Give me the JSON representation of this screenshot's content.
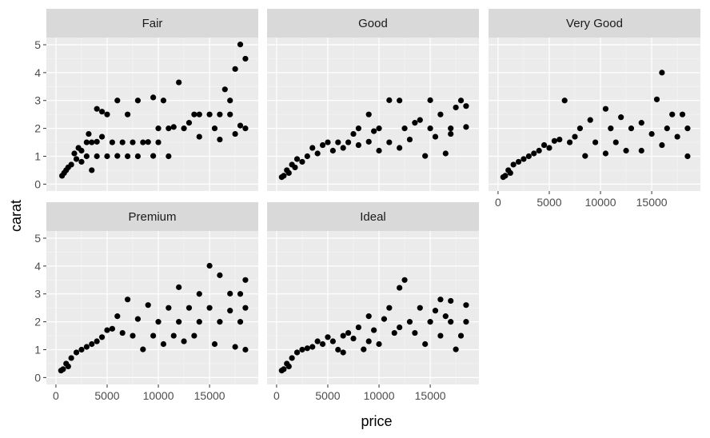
{
  "chart_data": {
    "type": "scatter",
    "xlabel": "price",
    "ylabel": "carat",
    "xlim": [
      0,
      18823
    ],
    "ylim": [
      0,
      5.01
    ],
    "x_ticks": [
      0,
      5000,
      10000,
      15000
    ],
    "y_ticks": [
      0,
      1,
      2,
      3,
      4,
      5
    ],
    "grid": true,
    "legend": "none",
    "colors": {
      "panel_bg": "#ebebeb",
      "strip_bg": "#d9d9d9",
      "grid_major": "#ffffff",
      "grid_minor": "#f5f5f5",
      "point": "#000000"
    },
    "facets": [
      {
        "label": "Fair",
        "points": [
          [
            18000,
            5.01
          ],
          [
            18500,
            4.5
          ],
          [
            17500,
            4.13
          ],
          [
            12000,
            3.65
          ],
          [
            16500,
            3.4
          ],
          [
            9500,
            3.11
          ],
          [
            10500,
            3.0
          ],
          [
            8000,
            3.0
          ],
          [
            17000,
            3.0
          ],
          [
            6000,
            3.0
          ],
          [
            4000,
            2.7
          ],
          [
            5000,
            2.5
          ],
          [
            4500,
            2.6
          ],
          [
            7000,
            2.5
          ],
          [
            14000,
            2.5
          ],
          [
            15000,
            2.5
          ],
          [
            16000,
            2.5
          ],
          [
            17000,
            2.5
          ],
          [
            13000,
            2.2
          ],
          [
            18000,
            2.1
          ],
          [
            10000,
            2.0
          ],
          [
            11000,
            2.0
          ],
          [
            12500,
            2.0
          ],
          [
            15500,
            2.0
          ],
          [
            18500,
            2.0
          ],
          [
            3000,
            1.5
          ],
          [
            3500,
            1.5
          ],
          [
            4000,
            1.52
          ],
          [
            5500,
            1.5
          ],
          [
            6500,
            1.5
          ],
          [
            7500,
            1.5
          ],
          [
            8500,
            1.5
          ],
          [
            9000,
            1.51
          ],
          [
            10000,
            1.5
          ],
          [
            2500,
            1.2
          ],
          [
            3000,
            1.0
          ],
          [
            4000,
            1.0
          ],
          [
            5000,
            1.0
          ],
          [
            6000,
            1.01
          ],
          [
            7000,
            1.0
          ],
          [
            8000,
            1.0
          ],
          [
            9500,
            1.01
          ],
          [
            11000,
            1.0
          ],
          [
            2000,
            0.9
          ],
          [
            2500,
            0.8
          ],
          [
            1500,
            0.7
          ],
          [
            3500,
            0.5
          ],
          [
            1000,
            0.5
          ],
          [
            800,
            0.4
          ],
          [
            600,
            0.3
          ],
          [
            1200,
            0.6
          ],
          [
            1800,
            1.1
          ],
          [
            2200,
            1.3
          ],
          [
            4500,
            1.7
          ],
          [
            3200,
            1.8
          ],
          [
            14000,
            1.7
          ],
          [
            16000,
            1.6
          ],
          [
            17500,
            1.8
          ],
          [
            13500,
            2.5
          ],
          [
            11500,
            2.05
          ]
        ]
      },
      {
        "label": "Good",
        "points": [
          [
            11000,
            3.01
          ],
          [
            12000,
            3.0
          ],
          [
            15000,
            3.01
          ],
          [
            18000,
            3.0
          ],
          [
            18500,
            2.8
          ],
          [
            17500,
            2.75
          ],
          [
            16000,
            2.5
          ],
          [
            14000,
            2.3
          ],
          [
            9000,
            2.5
          ],
          [
            8000,
            2.0
          ],
          [
            10000,
            2.0
          ],
          [
            12500,
            2.0
          ],
          [
            15000,
            2.0
          ],
          [
            17000,
            2.0
          ],
          [
            18500,
            2.05
          ],
          [
            6000,
            1.5
          ],
          [
            5000,
            1.5
          ],
          [
            7000,
            1.5
          ],
          [
            9000,
            1.52
          ],
          [
            11000,
            1.5
          ],
          [
            13000,
            1.6
          ],
          [
            15500,
            1.7
          ],
          [
            17000,
            1.8
          ],
          [
            3000,
            1.0
          ],
          [
            4000,
            1.1
          ],
          [
            5500,
            1.2
          ],
          [
            6500,
            1.3
          ],
          [
            8000,
            1.4
          ],
          [
            10000,
            1.2
          ],
          [
            12000,
            1.3
          ],
          [
            14500,
            1.01
          ],
          [
            16500,
            1.1
          ],
          [
            2000,
            0.9
          ],
          [
            2500,
            0.8
          ],
          [
            1500,
            0.7
          ],
          [
            1000,
            0.5
          ],
          [
            700,
            0.3
          ],
          [
            500,
            0.25
          ],
          [
            1200,
            0.4
          ],
          [
            1800,
            0.6
          ],
          [
            3500,
            1.3
          ],
          [
            4500,
            1.4
          ],
          [
            7500,
            1.8
          ],
          [
            9500,
            1.9
          ],
          [
            13500,
            2.2
          ]
        ]
      },
      {
        "label": "Very Good",
        "points": [
          [
            16000,
            4.0
          ],
          [
            15500,
            3.04
          ],
          [
            6500,
            3.0
          ],
          [
            10500,
            2.7
          ],
          [
            17000,
            2.5
          ],
          [
            18000,
            2.5
          ],
          [
            12000,
            2.4
          ],
          [
            9000,
            2.3
          ],
          [
            14000,
            2.2
          ],
          [
            16500,
            2.0
          ],
          [
            18500,
            2.0
          ],
          [
            8000,
            2.0
          ],
          [
            11000,
            2.0
          ],
          [
            13000,
            2.0
          ],
          [
            15000,
            1.8
          ],
          [
            17500,
            1.7
          ],
          [
            6000,
            1.6
          ],
          [
            7000,
            1.5
          ],
          [
            9500,
            1.5
          ],
          [
            11500,
            1.5
          ],
          [
            14000,
            1.2
          ],
          [
            16000,
            1.4
          ],
          [
            18500,
            1.0
          ],
          [
            5000,
            1.3
          ],
          [
            4000,
            1.2
          ],
          [
            3000,
            1.0
          ],
          [
            8500,
            1.01
          ],
          [
            10500,
            1.1
          ],
          [
            12500,
            1.2
          ],
          [
            2500,
            0.9
          ],
          [
            2000,
            0.8
          ],
          [
            1500,
            0.7
          ],
          [
            1000,
            0.5
          ],
          [
            700,
            0.3
          ],
          [
            500,
            0.25
          ],
          [
            1200,
            0.4
          ],
          [
            3500,
            1.1
          ],
          [
            4500,
            1.4
          ],
          [
            5500,
            1.55
          ],
          [
            7500,
            1.7
          ]
        ]
      },
      {
        "label": "Premium",
        "points": [
          [
            15000,
            4.01
          ],
          [
            16000,
            3.67
          ],
          [
            18500,
            3.5
          ],
          [
            12000,
            3.24
          ],
          [
            17000,
            3.01
          ],
          [
            14000,
            3.0
          ],
          [
            18000,
            3.0
          ],
          [
            7000,
            2.8
          ],
          [
            9000,
            2.6
          ],
          [
            11000,
            2.5
          ],
          [
            13000,
            2.5
          ],
          [
            15000,
            2.5
          ],
          [
            17000,
            2.4
          ],
          [
            18500,
            2.5
          ],
          [
            6000,
            2.2
          ],
          [
            8000,
            2.1
          ],
          [
            10000,
            2.0
          ],
          [
            12000,
            2.0
          ],
          [
            14000,
            2.0
          ],
          [
            16000,
            2.0
          ],
          [
            18000,
            2.0
          ],
          [
            5000,
            1.7
          ],
          [
            6500,
            1.6
          ],
          [
            7500,
            1.5
          ],
          [
            9500,
            1.5
          ],
          [
            11500,
            1.5
          ],
          [
            13500,
            1.5
          ],
          [
            15500,
            1.2
          ],
          [
            17500,
            1.1
          ],
          [
            18500,
            1.0
          ],
          [
            4000,
            1.3
          ],
          [
            3000,
            1.1
          ],
          [
            8500,
            1.01
          ],
          [
            10500,
            1.2
          ],
          [
            12500,
            1.3
          ],
          [
            2500,
            1.0
          ],
          [
            2000,
            0.9
          ],
          [
            1500,
            0.7
          ],
          [
            1000,
            0.5
          ],
          [
            700,
            0.3
          ],
          [
            500,
            0.25
          ],
          [
            1200,
            0.4
          ],
          [
            3500,
            1.2
          ],
          [
            4500,
            1.45
          ],
          [
            5500,
            1.75
          ]
        ]
      },
      {
        "label": "Ideal",
        "points": [
          [
            12500,
            3.5
          ],
          [
            12000,
            3.22
          ],
          [
            16000,
            2.8
          ],
          [
            17000,
            2.75
          ],
          [
            18500,
            2.6
          ],
          [
            11000,
            2.5
          ],
          [
            14000,
            2.5
          ],
          [
            15500,
            2.4
          ],
          [
            9000,
            2.2
          ],
          [
            10500,
            2.1
          ],
          [
            13000,
            2.0
          ],
          [
            15000,
            2.0
          ],
          [
            17000,
            2.0
          ],
          [
            18500,
            2.0
          ],
          [
            8000,
            1.8
          ],
          [
            9500,
            1.7
          ],
          [
            11500,
            1.6
          ],
          [
            13500,
            1.6
          ],
          [
            16000,
            1.5
          ],
          [
            18000,
            1.5
          ],
          [
            6500,
            1.5
          ],
          [
            7500,
            1.4
          ],
          [
            5500,
            1.3
          ],
          [
            14500,
            1.2
          ],
          [
            17500,
            1.01
          ],
          [
            4500,
            1.2
          ],
          [
            3500,
            1.1
          ],
          [
            6000,
            1.0
          ],
          [
            8500,
            1.01
          ],
          [
            10000,
            1.2
          ],
          [
            2500,
            1.0
          ],
          [
            2000,
            0.9
          ],
          [
            1500,
            0.7
          ],
          [
            1000,
            0.5
          ],
          [
            700,
            0.3
          ],
          [
            500,
            0.25
          ],
          [
            1200,
            0.4
          ],
          [
            3000,
            1.05
          ],
          [
            4000,
            1.3
          ],
          [
            5000,
            1.45
          ],
          [
            7000,
            1.6
          ],
          [
            12000,
            1.8
          ],
          [
            16500,
            2.2
          ],
          [
            6500,
            0.9
          ],
          [
            9000,
            1.3
          ]
        ]
      }
    ]
  }
}
